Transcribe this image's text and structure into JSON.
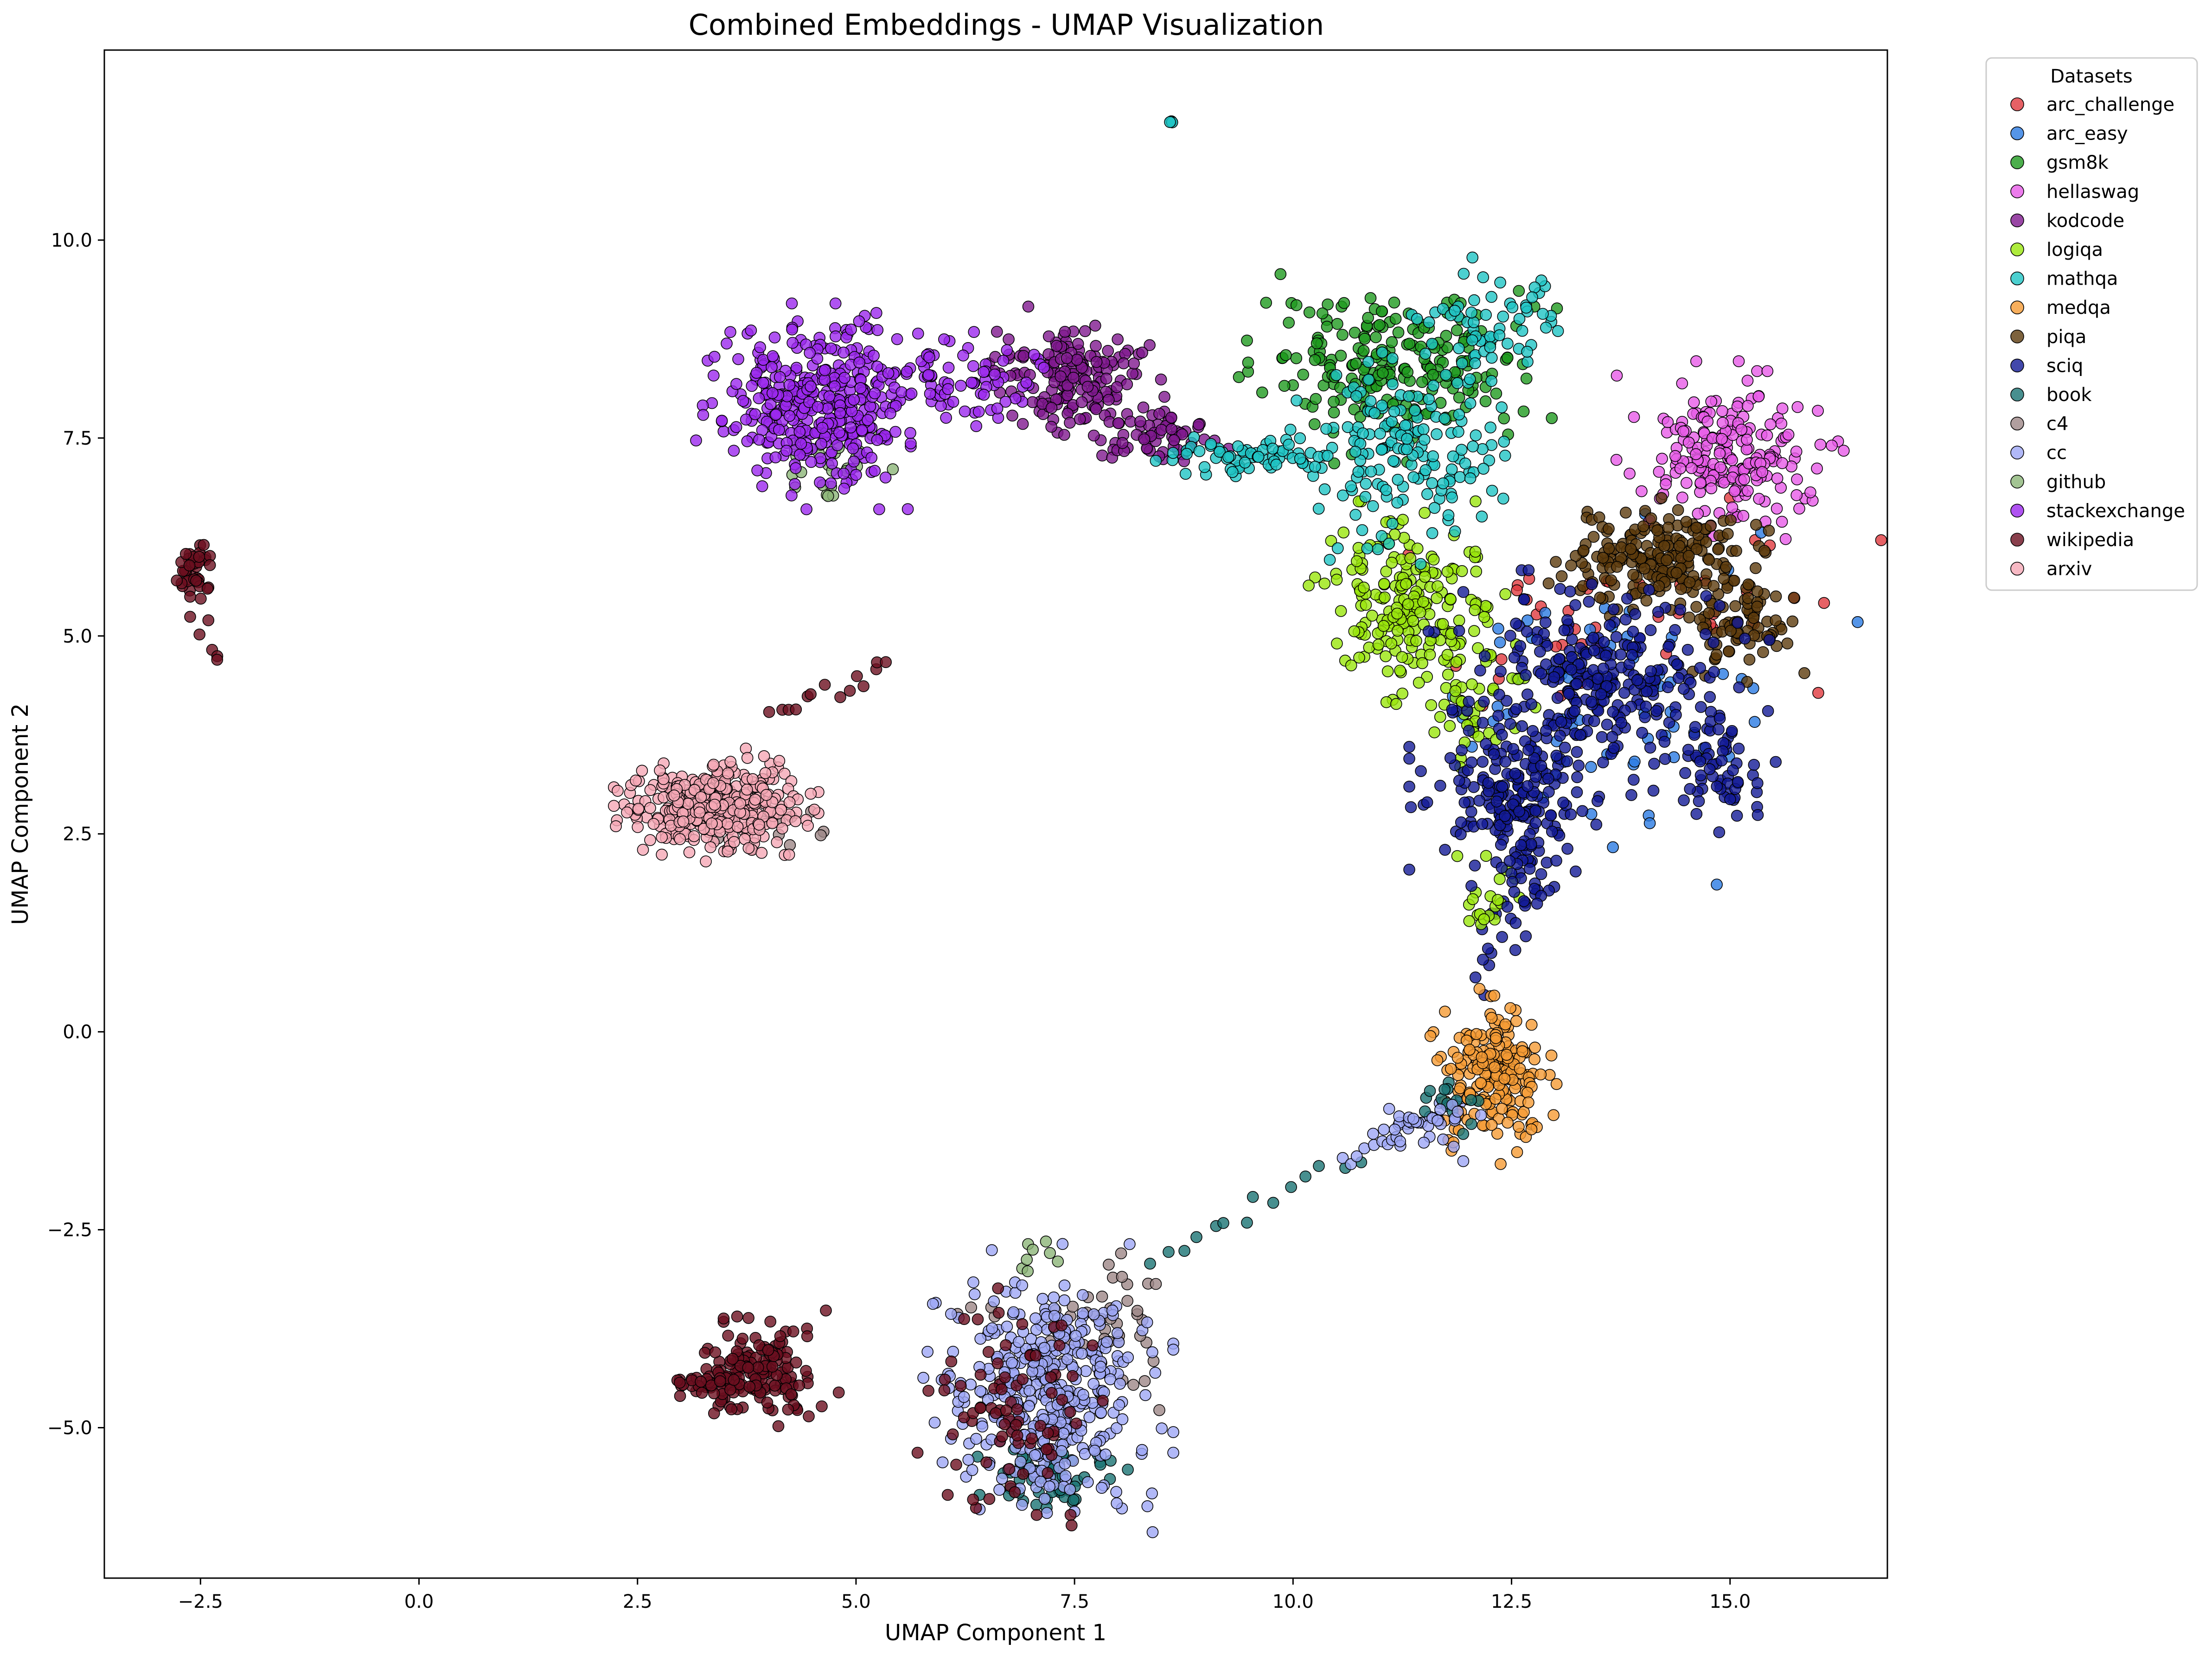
{
  "chart_data": {
    "type": "scatter",
    "title": "Combined Embeddings - UMAP Visualization",
    "xlabel": "UMAP Component 1",
    "ylabel": "UMAP Component 2",
    "xlim": [
      -3.6,
      16.8
    ],
    "ylim": [
      -6.9,
      12.4
    ],
    "xticks": [
      -2.5,
      0.0,
      2.5,
      5.0,
      7.5,
      10.0,
      12.5,
      15.0
    ],
    "xtick_labels": [
      "−2.5",
      "0.0",
      "2.5",
      "5.0",
      "7.5",
      "10.0",
      "12.5",
      "15.0"
    ],
    "yticks": [
      -5.0,
      -2.5,
      0.0,
      2.5,
      5.0,
      7.5,
      10.0
    ],
    "ytick_labels": [
      "−5.0",
      "−2.5",
      "0.0",
      "2.5",
      "5.0",
      "7.5",
      "10.0"
    ],
    "grid": false,
    "marker_edge_color": "#000000",
    "legend": {
      "title": "Datasets",
      "placement": "outside-upper-right"
    },
    "series": [
      {
        "name": "arc_challenge",
        "color": "#e0393e",
        "clusters": [
          {
            "center": [
              14.2,
              5.6
            ],
            "spread": [
              1.3,
              0.7
            ],
            "count": 35
          },
          {
            "center": [
              13.1,
              4.8
            ],
            "spread": [
              0.6,
              0.6
            ],
            "count": 15
          }
        ]
      },
      {
        "name": "arc_easy",
        "color": "#2a7ae2",
        "clusters": [
          {
            "center": [
              13.6,
              4.2
            ],
            "spread": [
              1.1,
              0.9
            ],
            "count": 70
          }
        ]
      },
      {
        "name": "gsm8k",
        "color": "#1f9a1f",
        "clusters": [
          {
            "center": [
              11.2,
              8.4
            ],
            "spread": [
              0.7,
              0.5
            ],
            "count": 220
          }
        ]
      },
      {
        "name": "hellaswag",
        "color": "#e75be7",
        "clusters": [
          {
            "center": [
              15.0,
              7.3
            ],
            "spread": [
              0.5,
              0.45
            ],
            "count": 210
          }
        ]
      },
      {
        "name": "kodcode",
        "color": "#80198f",
        "clusters": [
          {
            "center": [
              7.5,
              8.25
            ],
            "spread": [
              0.45,
              0.35
            ],
            "count": 170
          },
          {
            "center": [
              8.5,
              7.5
            ],
            "spread": [
              0.35,
              0.2
            ],
            "count": 60
          }
        ]
      },
      {
        "name": "logiqa",
        "color": "#9ae60d",
        "clusters": [
          {
            "center": [
              11.3,
              5.4
            ],
            "spread": [
              0.45,
              0.5
            ],
            "count": 200
          },
          {
            "center": [
              12.0,
              4.2
            ],
            "spread": [
              0.3,
              0.4
            ],
            "count": 50
          },
          {
            "center": [
              12.2,
              1.6
            ],
            "spread": [
              0.15,
              0.25
            ],
            "count": 20
          }
        ]
      },
      {
        "name": "mathqa",
        "color": "#1fc4c4",
        "clusters": [
          {
            "center": [
              11.4,
              7.3
            ],
            "spread": [
              0.55,
              0.6
            ],
            "count": 160
          },
          {
            "center": [
              9.6,
              7.25
            ],
            "spread": [
              0.45,
              0.1
            ],
            "count": 70
          },
          {
            "center": [
              12.2,
              9.0
            ],
            "spread": [
              0.45,
              0.3
            ],
            "count": 60
          },
          {
            "center": [
              8.6,
              11.5
            ],
            "spread": [
              0.01,
              0.01
            ],
            "count": 3
          }
        ]
      },
      {
        "name": "medqa",
        "color": "#f59b35",
        "clusters": [
          {
            "center": [
              12.3,
              -0.5
            ],
            "spread": [
              0.28,
              0.45
            ],
            "count": 200
          }
        ]
      },
      {
        "name": "piqa",
        "color": "#5c3b0c",
        "clusters": [
          {
            "center": [
              14.2,
              6.0
            ],
            "spread": [
              0.5,
              0.3
            ],
            "count": 200
          },
          {
            "center": [
              15.1,
              5.2
            ],
            "spread": [
              0.3,
              0.3
            ],
            "count": 80
          }
        ]
      },
      {
        "name": "sciq",
        "color": "#131a96",
        "clusters": [
          {
            "center": [
              13.5,
              4.4
            ],
            "spread": [
              0.75,
              0.55
            ],
            "count": 280
          },
          {
            "center": [
              12.5,
              3.0
            ],
            "spread": [
              0.45,
              0.45
            ],
            "count": 170
          },
          {
            "center": [
              14.9,
              3.3
            ],
            "spread": [
              0.25,
              0.3
            ],
            "count": 60
          },
          {
            "center": [
              12.6,
              2.0
            ],
            "spread": [
              0.2,
              0.45
            ],
            "count": 50
          }
        ]
      },
      {
        "name": "book",
        "color": "#1a7373",
        "clusters": [
          {
            "center": [
              7.2,
              -5.6
            ],
            "spread": [
              0.35,
              0.2
            ],
            "count": 60
          },
          {
            "center": [
              11.8,
              -0.9
            ],
            "spread": [
              0.2,
              0.15
            ],
            "count": 15
          }
        ]
      },
      {
        "name": "c4",
        "color": "#9e8787",
        "clusters": [
          {
            "center": [
              7.6,
              -3.8
            ],
            "spread": [
              0.6,
              0.5
            ],
            "count": 50
          },
          {
            "center": [
              4.2,
              2.5
            ],
            "spread": [
              0.3,
              0.2
            ],
            "count": 10
          }
        ]
      },
      {
        "name": "cc",
        "color": "#9ea6f5",
        "clusters": [
          {
            "center": [
              7.2,
              -4.5
            ],
            "spread": [
              0.55,
              0.7
            ],
            "count": 380
          },
          {
            "center": [
              11.5,
              -1.2
            ],
            "spread": [
              0.35,
              0.2
            ],
            "count": 30
          }
        ]
      },
      {
        "name": "github",
        "color": "#8cb578",
        "clusters": [
          {
            "center": [
              4.8,
              7.2
            ],
            "spread": [
              0.35,
              0.25
            ],
            "count": 25
          },
          {
            "center": [
              7.0,
              -2.8
            ],
            "spread": [
              0.2,
              0.15
            ],
            "count": 8
          }
        ]
      },
      {
        "name": "stackexchange",
        "color": "#9b28ee",
        "clusters": [
          {
            "center": [
              4.6,
              7.9
            ],
            "spread": [
              0.55,
              0.5
            ],
            "count": 380
          },
          {
            "center": [
              6.2,
              8.3
            ],
            "spread": [
              0.5,
              0.25
            ],
            "count": 70
          }
        ]
      },
      {
        "name": "wikipedia",
        "color": "#6b0f1f",
        "clusters": [
          {
            "center": [
              3.9,
              -4.3
            ],
            "spread": [
              0.35,
              0.3
            ],
            "count": 150
          },
          {
            "center": [
              3.4,
              -4.45
            ],
            "spread": [
              0.3,
              0.08
            ],
            "count": 40
          },
          {
            "center": [
              -2.6,
              5.85
            ],
            "spread": [
              0.08,
              0.15
            ],
            "count": 40
          },
          {
            "center": [
              6.8,
              -4.8
            ],
            "spread": [
              0.45,
              0.6
            ],
            "count": 80
          }
        ]
      },
      {
        "name": "arxiv",
        "color": "#f5a8b5",
        "clusters": [
          {
            "center": [
              3.4,
              2.85
            ],
            "spread": [
              0.45,
              0.28
            ],
            "count": 380
          }
        ]
      }
    ],
    "bridges": [
      {
        "from": [
          8.4,
          -2.9
        ],
        "to": [
          10.6,
          -1.6
        ],
        "color": "#1a7373",
        "count": 14
      },
      {
        "from": [
          10.6,
          -1.6
        ],
        "to": [
          12.0,
          -0.8
        ],
        "color": "#9ea6f5",
        "count": 20
      },
      {
        "from": [
          4.0,
          4.0
        ],
        "to": [
          5.4,
          4.7
        ],
        "color": "#6b0f1f",
        "count": 14
      },
      {
        "from": [
          12.1,
          0.6
        ],
        "to": [
          12.4,
          1.6
        ],
        "color": "#131a96",
        "count": 10
      },
      {
        "from": [
          -2.6,
          5.3
        ],
        "to": [
          -2.25,
          4.6
        ],
        "color": "#6b0f1f",
        "count": 6
      }
    ]
  }
}
